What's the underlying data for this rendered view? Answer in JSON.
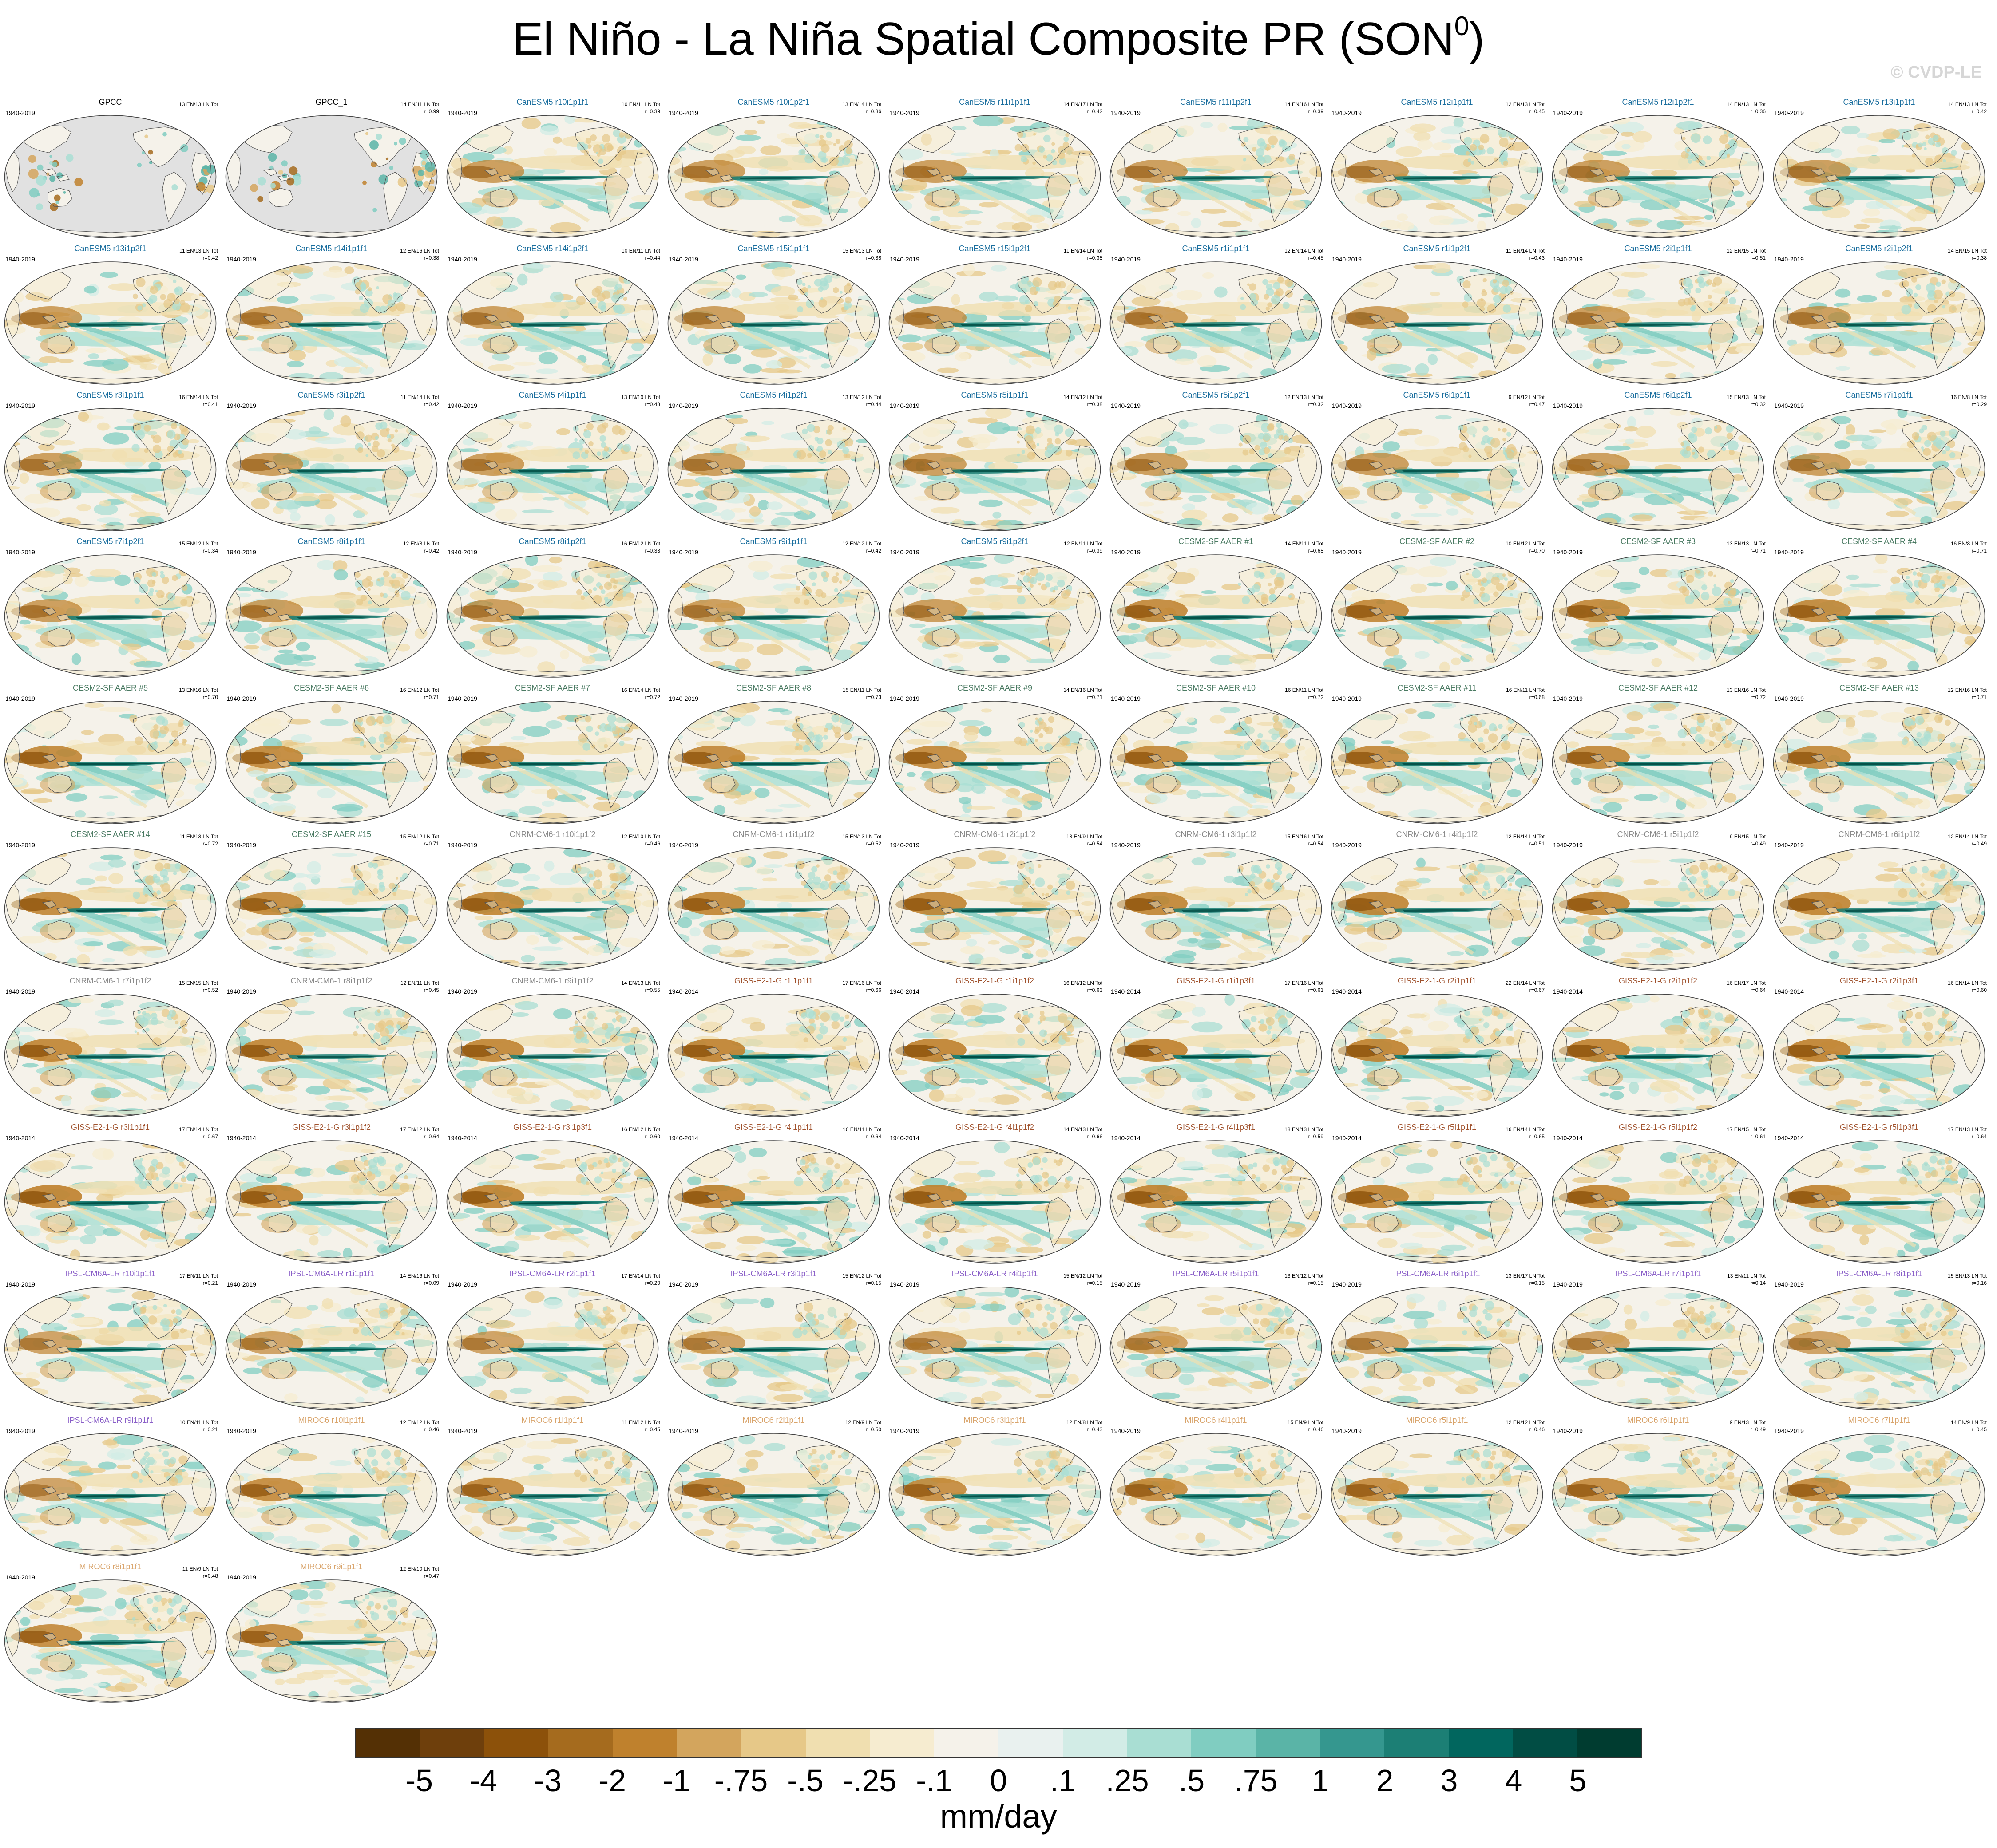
{
  "figure": {
    "title_main": "El Niño - La Niña Spatial Composite PR (SON",
    "title_sup": "0",
    "title_end": ")",
    "copyright": "© CVDP-LE",
    "units": "mm/day"
  },
  "colors": {
    "ocean_positive": "#01665e",
    "land_mask": "#e1e1e1",
    "coastline": "#555555"
  },
  "chart_data": {
    "type": "heatmap",
    "variable": "precipitation composite difference",
    "projection": "Robinson (global map, Pacific-centred)",
    "colorbar": {
      "labels": [
        "-5",
        "-4",
        "-3",
        "-2",
        "-1",
        "-.75",
        "-.5",
        "-.25",
        "-.1",
        "0",
        ".1",
        ".25",
        ".5",
        ".75",
        "1",
        "2",
        "3",
        "4",
        "5"
      ],
      "colors": [
        "#543005",
        "#6e3f0c",
        "#8c510a",
        "#a56b1e",
        "#bf812d",
        "#d3a55d",
        "#e6c888",
        "#f0dfb0",
        "#f6ecd0",
        "#f5f2ea",
        "#e9f1ef",
        "#d2ece6",
        "#a9ded3",
        "#80cdc1",
        "#5ab4a7",
        "#35978f",
        "#1c7f75",
        "#01665e",
        "#014d44",
        "#003c30"
      ]
    },
    "panels": [
      {
        "name": "GPCC",
        "period": "1940-2019",
        "counts": "13 EN/13 LN Tot",
        "corr": "",
        "color": "#000000",
        "variant": "obs"
      },
      {
        "name": "GPCC_1",
        "period": "",
        "counts": "14 EN/11 LN Tot",
        "corr": "r=0.99",
        "color": "#000000",
        "variant": "obs"
      },
      {
        "name": "CanESM5 r10i1p1f1",
        "period": "1940-2019",
        "counts": "10 EN/11 LN Tot",
        "corr": "r=0.39",
        "color": "#1a6e9e",
        "variant": "canesm"
      },
      {
        "name": "CanESM5 r10i1p2f1",
        "period": "1940-2019",
        "counts": "13 EN/14 LN Tot",
        "corr": "r=0.36",
        "color": "#1a6e9e",
        "variant": "canesm"
      },
      {
        "name": "CanESM5 r11i1p1f1",
        "period": "1940-2019",
        "counts": "14 EN/17 LN Tot",
        "corr": "r=0.42",
        "color": "#1a6e9e",
        "variant": "canesm"
      },
      {
        "name": "CanESM5 r11i1p2f1",
        "period": "1940-2019",
        "counts": "14 EN/16 LN Tot",
        "corr": "r=0.39",
        "color": "#1a6e9e",
        "variant": "canesm"
      },
      {
        "name": "CanESM5 r12i1p1f1",
        "period": "1940-2019",
        "counts": "12 EN/13 LN Tot",
        "corr": "r=0.45",
        "color": "#1a6e9e",
        "variant": "canesm"
      },
      {
        "name": "CanESM5 r12i1p2f1",
        "period": "1940-2019",
        "counts": "14 EN/13 LN Tot",
        "corr": "r=0.36",
        "color": "#1a6e9e",
        "variant": "canesm"
      },
      {
        "name": "CanESM5 r13i1p1f1",
        "period": "1940-2019",
        "counts": "14 EN/13 LN Tot",
        "corr": "r=0.42",
        "color": "#1a6e9e",
        "variant": "canesm"
      },
      {
        "name": "CanESM5 r13i1p2f1",
        "period": "1940-2019",
        "counts": "11 EN/13 LN Tot",
        "corr": "r=0.42",
        "color": "#1a6e9e",
        "variant": "canesm"
      },
      {
        "name": "CanESM5 r14i1p1f1",
        "period": "1940-2019",
        "counts": "12 EN/16 LN Tot",
        "corr": "r=0.38",
        "color": "#1a6e9e",
        "variant": "canesm"
      },
      {
        "name": "CanESM5 r14i1p2f1",
        "period": "1940-2019",
        "counts": "10 EN/11 LN Tot",
        "corr": "r=0.44",
        "color": "#1a6e9e",
        "variant": "canesm"
      },
      {
        "name": "CanESM5 r15i1p1f1",
        "period": "1940-2019",
        "counts": "15 EN/13 LN Tot",
        "corr": "r=0.38",
        "color": "#1a6e9e",
        "variant": "canesm"
      },
      {
        "name": "CanESM5 r15i1p2f1",
        "period": "1940-2019",
        "counts": "11 EN/14 LN Tot",
        "corr": "r=0.38",
        "color": "#1a6e9e",
        "variant": "canesm"
      },
      {
        "name": "CanESM5 r1i1p1f1",
        "period": "1940-2019",
        "counts": "12 EN/14 LN Tot",
        "corr": "r=0.45",
        "color": "#1a6e9e",
        "variant": "canesm"
      },
      {
        "name": "CanESM5 r1i1p2f1",
        "period": "1940-2019",
        "counts": "11 EN/14 LN Tot",
        "corr": "r=0.43",
        "color": "#1a6e9e",
        "variant": "canesm"
      },
      {
        "name": "CanESM5 r2i1p1f1",
        "period": "1940-2019",
        "counts": "12 EN/15 LN Tot",
        "corr": "r=0.51",
        "color": "#1a6e9e",
        "variant": "canesm"
      },
      {
        "name": "CanESM5 r2i1p2f1",
        "period": "1940-2019",
        "counts": "14 EN/15 LN Tot",
        "corr": "r=0.38",
        "color": "#1a6e9e",
        "variant": "canesm"
      },
      {
        "name": "CanESM5 r3i1p1f1",
        "period": "1940-2019",
        "counts": "16 EN/14 LN Tot",
        "corr": "r=0.41",
        "color": "#1a6e9e",
        "variant": "canesm"
      },
      {
        "name": "CanESM5 r3i1p2f1",
        "period": "1940-2019",
        "counts": "11 EN/14 LN Tot",
        "corr": "r=0.42",
        "color": "#1a6e9e",
        "variant": "canesm"
      },
      {
        "name": "CanESM5 r4i1p1f1",
        "period": "1940-2019",
        "counts": "13 EN/10 LN Tot",
        "corr": "r=0.43",
        "color": "#1a6e9e",
        "variant": "canesm"
      },
      {
        "name": "CanESM5 r4i1p2f1",
        "period": "1940-2019",
        "counts": "13 EN/12 LN Tot",
        "corr": "r=0.44",
        "color": "#1a6e9e",
        "variant": "canesm"
      },
      {
        "name": "CanESM5 r5i1p1f1",
        "period": "1940-2019",
        "counts": "14 EN/12 LN Tot",
        "corr": "r=0.38",
        "color": "#1a6e9e",
        "variant": "canesm"
      },
      {
        "name": "CanESM5 r5i1p2f1",
        "period": "1940-2019",
        "counts": "12 EN/13 LN Tot",
        "corr": "r=0.32",
        "color": "#1a6e9e",
        "variant": "canesm"
      },
      {
        "name": "CanESM5 r6i1p1f1",
        "period": "1940-2019",
        "counts": "9 EN/12 LN Tot",
        "corr": "r=0.47",
        "color": "#1a6e9e",
        "variant": "canesm"
      },
      {
        "name": "CanESM5 r6i1p2f1",
        "period": "1940-2019",
        "counts": "15 EN/13 LN Tot",
        "corr": "r=0.32",
        "color": "#1a6e9e",
        "variant": "canesm"
      },
      {
        "name": "CanESM5 r7i1p1f1",
        "period": "1940-2019",
        "counts": "16 EN/8 LN Tot",
        "corr": "r=0.29",
        "color": "#1a6e9e",
        "variant": "canesm"
      },
      {
        "name": "CanESM5 r7i1p2f1",
        "period": "1940-2019",
        "counts": "15 EN/12 LN Tot",
        "corr": "r=0.34",
        "color": "#1a6e9e",
        "variant": "canesm"
      },
      {
        "name": "CanESM5 r8i1p1f1",
        "period": "1940-2019",
        "counts": "12 EN/8 LN Tot",
        "corr": "r=0.42",
        "color": "#1a6e9e",
        "variant": "canesm"
      },
      {
        "name": "CanESM5 r8i1p2f1",
        "period": "1940-2019",
        "counts": "16 EN/12 LN Tot",
        "corr": "r=0.33",
        "color": "#1a6e9e",
        "variant": "canesm"
      },
      {
        "name": "CanESM5 r9i1p1f1",
        "period": "1940-2019",
        "counts": "12 EN/12 LN Tot",
        "corr": "r=0.42",
        "color": "#1a6e9e",
        "variant": "canesm"
      },
      {
        "name": "CanESM5 r9i1p2f1",
        "period": "1940-2019",
        "counts": "12 EN/11 LN Tot",
        "corr": "r=0.39",
        "color": "#1a6e9e",
        "variant": "canesm"
      },
      {
        "name": "CESM2-SF AAER #1",
        "period": "1940-2019",
        "counts": "14 EN/11 LN Tot",
        "corr": "r=0.68",
        "color": "#4a7a62",
        "variant": "cesm"
      },
      {
        "name": "CESM2-SF AAER #2",
        "period": "1940-2019",
        "counts": "10 EN/12 LN Tot",
        "corr": "r=0.70",
        "color": "#4a7a62",
        "variant": "cesm"
      },
      {
        "name": "CESM2-SF AAER #3",
        "period": "1940-2019",
        "counts": "13 EN/13 LN Tot",
        "corr": "r=0.71",
        "color": "#4a7a62",
        "variant": "cesm"
      },
      {
        "name": "CESM2-SF AAER #4",
        "period": "1940-2019",
        "counts": "16 EN/8 LN Tot",
        "corr": "r=0.71",
        "color": "#4a7a62",
        "variant": "cesm"
      },
      {
        "name": "CESM2-SF AAER #5",
        "period": "1940-2019",
        "counts": "13 EN/16 LN Tot",
        "corr": "r=0.70",
        "color": "#4a7a62",
        "variant": "cesm"
      },
      {
        "name": "CESM2-SF AAER #6",
        "period": "1940-2019",
        "counts": "16 EN/12 LN Tot",
        "corr": "r=0.71",
        "color": "#4a7a62",
        "variant": "cesm"
      },
      {
        "name": "CESM2-SF AAER #7",
        "period": "1940-2019",
        "counts": "16 EN/14 LN Tot",
        "corr": "r=0.72",
        "color": "#4a7a62",
        "variant": "cesm"
      },
      {
        "name": "CESM2-SF AAER #8",
        "period": "1940-2019",
        "counts": "15 EN/11 LN Tot",
        "corr": "r=0.73",
        "color": "#4a7a62",
        "variant": "cesm"
      },
      {
        "name": "CESM2-SF AAER #9",
        "period": "1940-2019",
        "counts": "14 EN/16 LN Tot",
        "corr": "r=0.71",
        "color": "#4a7a62",
        "variant": "cesm"
      },
      {
        "name": "CESM2-SF AAER #10",
        "period": "1940-2019",
        "counts": "16 EN/11 LN Tot",
        "corr": "r=0.72",
        "color": "#4a7a62",
        "variant": "cesm"
      },
      {
        "name": "CESM2-SF AAER #11",
        "period": "1940-2019",
        "counts": "16 EN/11 LN Tot",
        "corr": "r=0.68",
        "color": "#4a7a62",
        "variant": "cesm"
      },
      {
        "name": "CESM2-SF AAER #12",
        "period": "1940-2019",
        "counts": "13 EN/16 LN Tot",
        "corr": "r=0.72",
        "color": "#4a7a62",
        "variant": "cesm"
      },
      {
        "name": "CESM2-SF AAER #13",
        "period": "1940-2019",
        "counts": "12 EN/16 LN Tot",
        "corr": "r=0.71",
        "color": "#4a7a62",
        "variant": "cesm"
      },
      {
        "name": "CESM2-SF AAER #14",
        "period": "1940-2019",
        "counts": "11 EN/13 LN Tot",
        "corr": "r=0.72",
        "color": "#4a7a62",
        "variant": "cesm"
      },
      {
        "name": "CESM2-SF AAER #15",
        "period": "1940-2019",
        "counts": "15 EN/12 LN Tot",
        "corr": "r=0.71",
        "color": "#4a7a62",
        "variant": "cesm"
      },
      {
        "name": "CNRM-CM6-1 r10i1p1f2",
        "period": "1940-2019",
        "counts": "12 EN/10 LN Tot",
        "corr": "r=0.46",
        "color": "#8a8a8a",
        "variant": "cnrm"
      },
      {
        "name": "CNRM-CM6-1 r1i1p1f2",
        "period": "1940-2019",
        "counts": "15 EN/13 LN Tot",
        "corr": "r=0.52",
        "color": "#8a8a8a",
        "variant": "cnrm"
      },
      {
        "name": "CNRM-CM6-1 r2i1p1f2",
        "period": "1940-2019",
        "counts": "13 EN/9 LN Tot",
        "corr": "r=0.54",
        "color": "#8a8a8a",
        "variant": "cnrm"
      },
      {
        "name": "CNRM-CM6-1 r3i1p1f2",
        "period": "1940-2019",
        "counts": "15 EN/16 LN Tot",
        "corr": "r=0.54",
        "color": "#8a8a8a",
        "variant": "cnrm"
      },
      {
        "name": "CNRM-CM6-1 r4i1p1f2",
        "period": "1940-2019",
        "counts": "12 EN/14 LN Tot",
        "corr": "r=0.51",
        "color": "#8a8a8a",
        "variant": "cnrm"
      },
      {
        "name": "CNRM-CM6-1 r5i1p1f2",
        "period": "1940-2019",
        "counts": "9 EN/15 LN Tot",
        "corr": "r=0.49",
        "color": "#8a8a8a",
        "variant": "cnrm"
      },
      {
        "name": "CNRM-CM6-1 r6i1p1f2",
        "period": "1940-2019",
        "counts": "12 EN/14 LN Tot",
        "corr": "r=0.49",
        "color": "#8a8a8a",
        "variant": "cnrm"
      },
      {
        "name": "CNRM-CM6-1 r7i1p1f2",
        "period": "1940-2019",
        "counts": "15 EN/15 LN Tot",
        "corr": "r=0.52",
        "color": "#8a8a8a",
        "variant": "cnrm"
      },
      {
        "name": "CNRM-CM6-1 r8i1p1f2",
        "period": "1940-2019",
        "counts": "12 EN/11 LN Tot",
        "corr": "r=0.45",
        "color": "#8a8a8a",
        "variant": "cnrm"
      },
      {
        "name": "CNRM-CM6-1 r9i1p1f2",
        "period": "1940-2019",
        "counts": "14 EN/13 LN Tot",
        "corr": "r=0.55",
        "color": "#8a8a8a",
        "variant": "cnrm"
      },
      {
        "name": "GISS-E2-1-G r1i1p1f1",
        "period": "1940-2014",
        "counts": "17 EN/16 LN Tot",
        "corr": "r=0.66",
        "color": "#a0522d",
        "variant": "giss"
      },
      {
        "name": "GISS-E2-1-G r1i1p1f2",
        "period": "1940-2014",
        "counts": "16 EN/12 LN Tot",
        "corr": "r=0.63",
        "color": "#a0522d",
        "variant": "giss"
      },
      {
        "name": "GISS-E2-1-G r1i1p3f1",
        "period": "1940-2014",
        "counts": "17 EN/16 LN Tot",
        "corr": "r=0.61",
        "color": "#a0522d",
        "variant": "giss"
      },
      {
        "name": "GISS-E2-1-G r2i1p1f1",
        "period": "1940-2014",
        "counts": "22 EN/14 LN Tot",
        "corr": "r=0.67",
        "color": "#a0522d",
        "variant": "giss"
      },
      {
        "name": "GISS-E2-1-G r2i1p1f2",
        "period": "1940-2014",
        "counts": "16 EN/17 LN Tot",
        "corr": "r=0.64",
        "color": "#a0522d",
        "variant": "giss"
      },
      {
        "name": "GISS-E2-1-G r2i1p3f1",
        "period": "1940-2014",
        "counts": "16 EN/14 LN Tot",
        "corr": "r=0.60",
        "color": "#a0522d",
        "variant": "giss"
      },
      {
        "name": "GISS-E2-1-G r3i1p1f1",
        "period": "1940-2014",
        "counts": "17 EN/14 LN Tot",
        "corr": "r=0.67",
        "color": "#a0522d",
        "variant": "giss"
      },
      {
        "name": "GISS-E2-1-G r3i1p1f2",
        "period": "1940-2014",
        "counts": "17 EN/12 LN Tot",
        "corr": "r=0.64",
        "color": "#a0522d",
        "variant": "giss"
      },
      {
        "name": "GISS-E2-1-G r3i1p3f1",
        "period": "1940-2014",
        "counts": "16 EN/12 LN Tot",
        "corr": "r=0.60",
        "color": "#a0522d",
        "variant": "giss"
      },
      {
        "name": "GISS-E2-1-G r4i1p1f1",
        "period": "1940-2014",
        "counts": "16 EN/11 LN Tot",
        "corr": "r=0.64",
        "color": "#a0522d",
        "variant": "giss"
      },
      {
        "name": "GISS-E2-1-G r4i1p1f2",
        "period": "1940-2014",
        "counts": "14 EN/13 LN Tot",
        "corr": "r=0.66",
        "color": "#a0522d",
        "variant": "giss"
      },
      {
        "name": "GISS-E2-1-G r4i1p3f1",
        "period": "1940-2014",
        "counts": "18 EN/13 LN Tot",
        "corr": "r=0.59",
        "color": "#a0522d",
        "variant": "giss"
      },
      {
        "name": "GISS-E2-1-G r5i1p1f1",
        "period": "1940-2014",
        "counts": "16 EN/14 LN Tot",
        "corr": "r=0.65",
        "color": "#a0522d",
        "variant": "giss"
      },
      {
        "name": "GISS-E2-1-G r5i1p1f2",
        "period": "1940-2014",
        "counts": "17 EN/15 LN Tot",
        "corr": "r=0.61",
        "color": "#a0522d",
        "variant": "giss"
      },
      {
        "name": "GISS-E2-1-G r5i1p3f1",
        "period": "1940-2014",
        "counts": "17 EN/13 LN Tot",
        "corr": "r=0.64",
        "color": "#a0522d",
        "variant": "giss"
      },
      {
        "name": "IPSL-CM6A-LR r10i1p1f1",
        "period": "1940-2019",
        "counts": "17 EN/11 LN Tot",
        "corr": "r=0.21",
        "color": "#8a5fc8",
        "variant": "ipsl"
      },
      {
        "name": "IPSL-CM6A-LR r1i1p1f1",
        "period": "1940-2019",
        "counts": "14 EN/16 LN Tot",
        "corr": "r=0.09",
        "color": "#8a5fc8",
        "variant": "ipsl"
      },
      {
        "name": "IPSL-CM6A-LR r2i1p1f1",
        "period": "1940-2019",
        "counts": "17 EN/14 LN Tot",
        "corr": "r=0.20",
        "color": "#8a5fc8",
        "variant": "ipsl"
      },
      {
        "name": "IPSL-CM6A-LR r3i1p1f1",
        "period": "1940-2019",
        "counts": "15 EN/12 LN Tot",
        "corr": "r=0.15",
        "color": "#8a5fc8",
        "variant": "ipsl"
      },
      {
        "name": "IPSL-CM6A-LR r4i1p1f1",
        "period": "1940-2019",
        "counts": "15 EN/12 LN Tot",
        "corr": "r=0.15",
        "color": "#8a5fc8",
        "variant": "ipsl"
      },
      {
        "name": "IPSL-CM6A-LR r5i1p1f1",
        "period": "1940-2019",
        "counts": "13 EN/12 LN Tot",
        "corr": "r=0.15",
        "color": "#8a5fc8",
        "variant": "ipsl"
      },
      {
        "name": "IPSL-CM6A-LR r6i1p1f1",
        "period": "1940-2019",
        "counts": "13 EN/17 LN Tot",
        "corr": "r=0.15",
        "color": "#8a5fc8",
        "variant": "ipsl"
      },
      {
        "name": "IPSL-CM6A-LR r7i1p1f1",
        "period": "1940-2019",
        "counts": "13 EN/11 LN Tot",
        "corr": "r=0.14",
        "color": "#8a5fc8",
        "variant": "ipsl"
      },
      {
        "name": "IPSL-CM6A-LR r8i1p1f1",
        "period": "1940-2019",
        "counts": "15 EN/13 LN Tot",
        "corr": "r=0.16",
        "color": "#8a5fc8",
        "variant": "ipsl"
      },
      {
        "name": "IPSL-CM6A-LR r9i1p1f1",
        "period": "1940-2019",
        "counts": "10 EN/11 LN Tot",
        "corr": "r=0.21",
        "color": "#8a5fc8",
        "variant": "ipsl"
      },
      {
        "name": "MIROC6 r10i1p1f1",
        "period": "1940-2019",
        "counts": "12 EN/12 LN Tot",
        "corr": "r=0.46",
        "color": "#d9a46b",
        "variant": "miroc"
      },
      {
        "name": "MIROC6 r1i1p1f1",
        "period": "1940-2019",
        "counts": "11 EN/12 LN Tot",
        "corr": "r=0.45",
        "color": "#d9a46b",
        "variant": "miroc"
      },
      {
        "name": "MIROC6 r2i1p1f1",
        "period": "1940-2019",
        "counts": "12 EN/9 LN Tot",
        "corr": "r=0.50",
        "color": "#d9a46b",
        "variant": "miroc"
      },
      {
        "name": "MIROC6 r3i1p1f1",
        "period": "1940-2019",
        "counts": "12 EN/8 LN Tot",
        "corr": "r=0.43",
        "color": "#d9a46b",
        "variant": "miroc"
      },
      {
        "name": "MIROC6 r4i1p1f1",
        "period": "1940-2019",
        "counts": "15 EN/9 LN Tot",
        "corr": "r=0.46",
        "color": "#d9a46b",
        "variant": "miroc"
      },
      {
        "name": "MIROC6 r5i1p1f1",
        "period": "1940-2019",
        "counts": "12 EN/12 LN Tot",
        "corr": "r=0.46",
        "color": "#d9a46b",
        "variant": "miroc"
      },
      {
        "name": "MIROC6 r6i1p1f1",
        "period": "1940-2019",
        "counts": "9 EN/13 LN Tot",
        "corr": "r=0.49",
        "color": "#d9a46b",
        "variant": "miroc"
      },
      {
        "name": "MIROC6 r7i1p1f1",
        "period": "1940-2019",
        "counts": "14 EN/9 LN Tot",
        "corr": "r=0.45",
        "color": "#d9a46b",
        "variant": "miroc"
      },
      {
        "name": "MIROC6 r8i1p1f1",
        "period": "1940-2019",
        "counts": "11 EN/9 LN Tot",
        "corr": "r=0.48",
        "color": "#d9a46b",
        "variant": "miroc"
      },
      {
        "name": "MIROC6 r9i1p1f1",
        "period": "1940-2019",
        "counts": "12 EN/10 LN Tot",
        "corr": "r=0.47",
        "color": "#d9a46b",
        "variant": "miroc"
      }
    ]
  }
}
